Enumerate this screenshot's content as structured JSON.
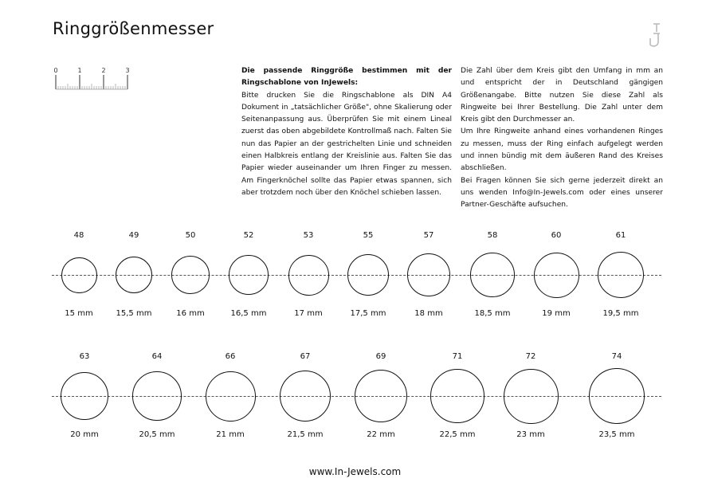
{
  "title": "Ringgrößenmesser",
  "logo_text": "IJ",
  "ruler": {
    "ticks": [
      "0",
      "1",
      "2",
      "3"
    ],
    "unit": "cm"
  },
  "intro": {
    "heading": "Die passende Ringgröße bestimmen mit der Ringschablone von InJewels:",
    "body": "Bitte drucken Sie die Ringschablone als DIN A4 Dokument in „tatsächlicher Größe\", ohne Skalierung oder Seitenanpassung aus. Überprüfen Sie mit einem Lineal zuerst das oben abgebildete Kontrollmaß nach. Falten Sie nun das Papier an der gestrichelten Linie und schneiden einen Halbkreis entlang der Kreislinie aus. Falten Sie das Papier wieder auseinander um Ihren Finger zu messen. Am Fingerknöchel sollte das Papier etwas spannen, sich aber trotzdem noch über den Knöchel schieben lassen."
  },
  "info": {
    "p1": "Die Zahl über dem Kreis gibt den Umfang in mm an und entspricht der in Deutschland gängigen Größenangabe. Bitte nutzen Sie diese Zahl als Ringweite bei Ihrer Bestellung. Die Zahl unter dem Kreis gibt den Durchmesser an.",
    "p2": "Um Ihre Ringweite anhand eines vorhandenen Ringes zu messen, muss der Ring einfach aufgelegt werden und innen bündig mit dem äußeren Rand des Kreises abschließen.",
    "p3": "Bei Fragen können Sie sich gerne jederzeit direkt an uns wenden Info@In-Jewels.com oder eines unserer Partner-Geschäfte aufsuchen."
  },
  "rings": [
    [
      {
        "size": "48",
        "diameter": "15 mm",
        "mm": 15
      },
      {
        "size": "49",
        "diameter": "15,5 mm",
        "mm": 15.5
      },
      {
        "size": "50",
        "diameter": "16 mm",
        "mm": 16
      },
      {
        "size": "52",
        "diameter": "16,5 mm",
        "mm": 16.5
      },
      {
        "size": "53",
        "diameter": "17 mm",
        "mm": 17
      },
      {
        "size": "55",
        "diameter": "17,5 mm",
        "mm": 17.5
      },
      {
        "size": "57",
        "diameter": "18 mm",
        "mm": 18
      },
      {
        "size": "58",
        "diameter": "18,5 mm",
        "mm": 18.5
      },
      {
        "size": "60",
        "diameter": "19 mm",
        "mm": 19
      },
      {
        "size": "61",
        "diameter": "19,5 mm",
        "mm": 19.5
      }
    ],
    [
      {
        "size": "63",
        "diameter": "20 mm",
        "mm": 20
      },
      {
        "size": "64",
        "diameter": "20,5 mm",
        "mm": 20.5
      },
      {
        "size": "66",
        "diameter": "21 mm",
        "mm": 21
      },
      {
        "size": "67",
        "diameter": "21,5 mm",
        "mm": 21.5
      },
      {
        "size": "69",
        "diameter": "22 mm",
        "mm": 22
      },
      {
        "size": "71",
        "diameter": "22,5 mm",
        "mm": 22.5
      },
      {
        "size": "72",
        "diameter": "23 mm",
        "mm": 23
      },
      {
        "size": "74",
        "diameter": "23,5 mm",
        "mm": 23.5
      }
    ]
  ],
  "footer": "www.In-Jewels.com"
}
